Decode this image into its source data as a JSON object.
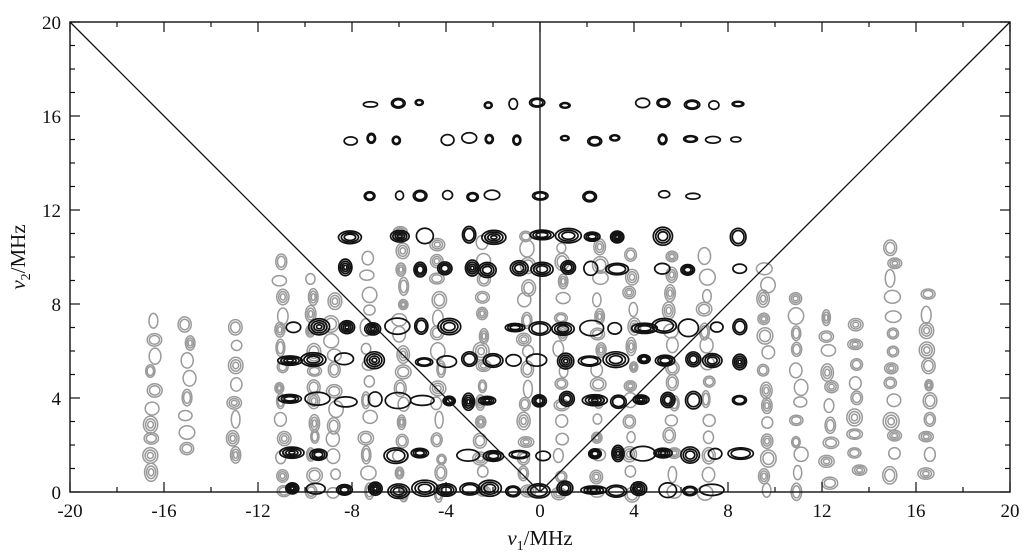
{
  "chart_data": {
    "type": "contour",
    "xlabel": {
      "symbol": "ν",
      "subscript": "1",
      "unit": "/MHz"
    },
    "ylabel": {
      "symbol": "ν",
      "subscript": "2",
      "unit": "/MHz"
    },
    "xlim": [
      -20,
      20
    ],
    "ylim": [
      0,
      20
    ],
    "x_ticks": [
      -20,
      -16,
      -12,
      -8,
      -4,
      0,
      4,
      8,
      12,
      16,
      20
    ],
    "y_ticks": [
      0,
      4,
      8,
      12,
      16,
      20
    ],
    "reference_lines": [
      {
        "name": "anti-diagonal",
        "x": [
          -20,
          0
        ],
        "y": [
          20,
          0
        ]
      },
      {
        "name": "vertical-axis",
        "x": [
          0,
          0
        ],
        "y": [
          0,
          20
        ]
      },
      {
        "name": "diagonal",
        "x": [
          0,
          20
        ],
        "y": [
          0,
          20
        ]
      }
    ],
    "contour_colors": {
      "black": "#111111",
      "gray": "#9a9a9a"
    },
    "black_rows_y": [
      0.1,
      1.6,
      3.9,
      5.6,
      7.0,
      9.5,
      10.9,
      12.6,
      15.0,
      16.5
    ],
    "black_columns_x": [
      -10.5,
      -9.5,
      -8.2,
      -7.1,
      -6.0,
      -5.0,
      -4.0,
      -3.0,
      -2.1,
      -1.0,
      0.0,
      1.1,
      2.2,
      3.2,
      4.3,
      5.3,
      6.4,
      7.4,
      8.4
    ],
    "gray_columns": [
      {
        "x": -16.5,
        "y_range": [
          0.8,
          7.2
        ]
      },
      {
        "x": -15.0,
        "y_range": [
          1.8,
          7.1
        ]
      },
      {
        "x": -13.0,
        "y_range": [
          1.5,
          7.0
        ]
      },
      {
        "x": -11.0,
        "y_range": [
          0.0,
          9.8
        ]
      },
      {
        "x": -9.7,
        "y_range": [
          0.0,
          9.0
        ]
      },
      {
        "x": -8.8,
        "y_range": [
          0.0,
          8.0
        ]
      },
      {
        "x": -7.3,
        "y_range": [
          0.0,
          10.0
        ]
      },
      {
        "x": -5.9,
        "y_range": [
          0.0,
          11.0
        ]
      },
      {
        "x": -4.3,
        "y_range": [
          0.0,
          10.5
        ]
      },
      {
        "x": -2.5,
        "y_range": [
          0.0,
          10.5
        ]
      },
      {
        "x": -0.6,
        "y_range": [
          0.0,
          11.0
        ]
      },
      {
        "x": 0.9,
        "y_range": [
          0.0,
          10.5
        ]
      },
      {
        "x": 2.5,
        "y_range": [
          0.0,
          10.5
        ]
      },
      {
        "x": 3.9,
        "y_range": [
          0.0,
          10.0
        ]
      },
      {
        "x": 5.6,
        "y_range": [
          0.0,
          10.0
        ]
      },
      {
        "x": 7.1,
        "y_range": [
          0.0,
          10.0
        ]
      },
      {
        "x": 9.6,
        "y_range": [
          0.0,
          9.6
        ]
      },
      {
        "x": 11.0,
        "y_range": [
          0.0,
          8.2
        ]
      },
      {
        "x": 12.3,
        "y_range": [
          0.5,
          7.5
        ]
      },
      {
        "x": 13.5,
        "y_range": [
          1.0,
          7.0
        ]
      },
      {
        "x": 15.0,
        "y_range": [
          0.8,
          10.5
        ]
      },
      {
        "x": 16.5,
        "y_range": [
          0.8,
          8.3
        ]
      }
    ]
  }
}
